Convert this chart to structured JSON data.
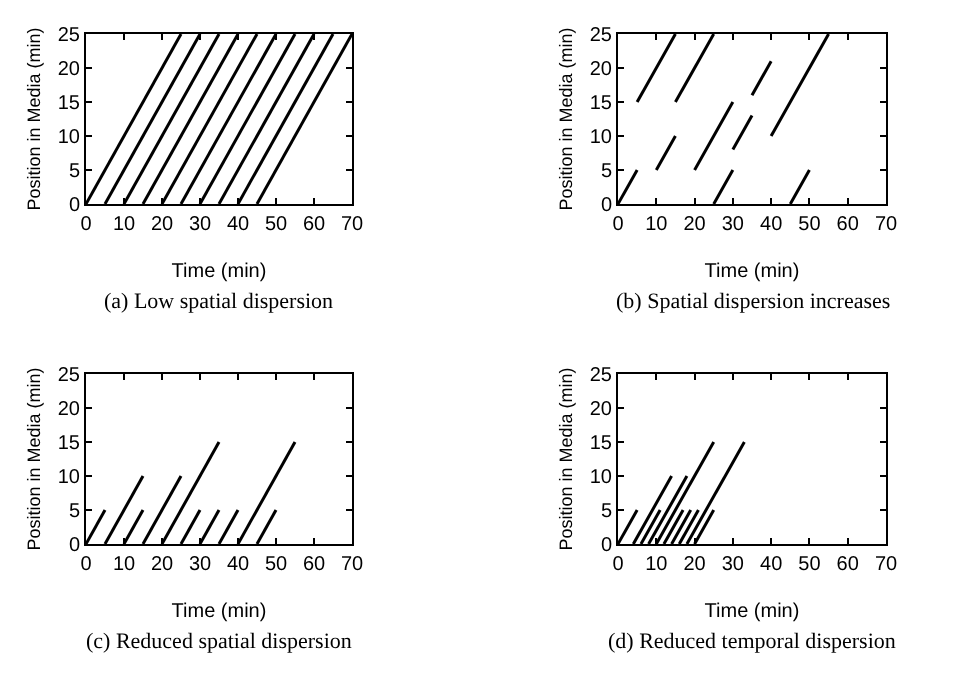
{
  "chart_data": [
    {
      "type": "line",
      "xlabel": "Time (min)",
      "ylabel": "Position in Media (min)",
      "annotations": [
        "(a) Low spatial dispersion"
      ],
      "xlim": [
        0,
        70
      ],
      "ylim": [
        0,
        25
      ],
      "xticks": [
        0,
        10,
        20,
        30,
        40,
        50,
        60,
        70
      ],
      "yticks": [
        0,
        5,
        10,
        15,
        20,
        25
      ],
      "grid": false,
      "series": [
        {
          "color": "#000000",
          "x": [
            0,
            25
          ],
          "values": [
            0,
            25
          ]
        },
        {
          "color": "#000000",
          "x": [
            5,
            30
          ],
          "values": [
            0,
            25
          ]
        },
        {
          "color": "#000000",
          "x": [
            10,
            35
          ],
          "values": [
            0,
            25
          ]
        },
        {
          "color": "#000000",
          "x": [
            15,
            40
          ],
          "values": [
            0,
            25
          ]
        },
        {
          "color": "#000000",
          "x": [
            20,
            45
          ],
          "values": [
            0,
            25
          ]
        },
        {
          "color": "#000000",
          "x": [
            25,
            50
          ],
          "values": [
            0,
            25
          ]
        },
        {
          "color": "#000000",
          "x": [
            30,
            55
          ],
          "values": [
            0,
            25
          ]
        },
        {
          "color": "#000000",
          "x": [
            35,
            60
          ],
          "values": [
            0,
            25
          ]
        },
        {
          "color": "#000000",
          "x": [
            40,
            65
          ],
          "values": [
            0,
            25
          ]
        },
        {
          "color": "#000000",
          "x": [
            45,
            70
          ],
          "values": [
            0,
            25
          ]
        }
      ]
    },
    {
      "type": "line",
      "xlabel": "Time (min)",
      "ylabel": "Position in Media (min)",
      "annotations": [
        "(b) Spatial dispersion increases"
      ],
      "xlim": [
        0,
        70
      ],
      "ylim": [
        0,
        25
      ],
      "xticks": [
        0,
        10,
        20,
        30,
        40,
        50,
        60,
        70
      ],
      "yticks": [
        0,
        5,
        10,
        15,
        20,
        25
      ],
      "grid": false,
      "series": [
        {
          "color": "#000000",
          "x": [
            0,
            5
          ],
          "values": [
            0,
            5
          ]
        },
        {
          "color": "#000000",
          "x": [
            5,
            15
          ],
          "values": [
            15,
            25
          ]
        },
        {
          "color": "#000000",
          "x": [
            10,
            15
          ],
          "values": [
            5,
            10
          ]
        },
        {
          "color": "#000000",
          "x": [
            15,
            25
          ],
          "values": [
            15,
            25
          ]
        },
        {
          "color": "#000000",
          "x": [
            20,
            30
          ],
          "values": [
            5,
            15
          ]
        },
        {
          "color": "#000000",
          "x": [
            25,
            30
          ],
          "values": [
            0,
            5
          ]
        },
        {
          "color": "#000000",
          "x": [
            30,
            35
          ],
          "values": [
            8,
            13
          ]
        },
        {
          "color": "#000000",
          "x": [
            35,
            40
          ],
          "values": [
            16,
            21
          ]
        },
        {
          "color": "#000000",
          "x": [
            40,
            55
          ],
          "values": [
            10,
            25
          ]
        },
        {
          "color": "#000000",
          "x": [
            45,
            50
          ],
          "values": [
            0,
            5
          ]
        }
      ]
    },
    {
      "type": "line",
      "xlabel": "Time (min)",
      "ylabel": "Position in Media (min)",
      "annotations": [
        "(c) Reduced spatial dispersion"
      ],
      "xlim": [
        0,
        70
      ],
      "ylim": [
        0,
        25
      ],
      "xticks": [
        0,
        10,
        20,
        30,
        40,
        50,
        60,
        70
      ],
      "yticks": [
        0,
        5,
        10,
        15,
        20,
        25
      ],
      "grid": false,
      "series": [
        {
          "color": "#000000",
          "x": [
            0,
            5
          ],
          "values": [
            0,
            5
          ]
        },
        {
          "color": "#000000",
          "x": [
            5,
            15
          ],
          "values": [
            0,
            10
          ]
        },
        {
          "color": "#000000",
          "x": [
            10,
            15
          ],
          "values": [
            0,
            5
          ]
        },
        {
          "color": "#000000",
          "x": [
            15,
            25
          ],
          "values": [
            0,
            10
          ]
        },
        {
          "color": "#000000",
          "x": [
            20,
            35
          ],
          "values": [
            0,
            15
          ]
        },
        {
          "color": "#000000",
          "x": [
            25,
            30
          ],
          "values": [
            0,
            5
          ]
        },
        {
          "color": "#000000",
          "x": [
            30,
            35
          ],
          "values": [
            0,
            5
          ]
        },
        {
          "color": "#000000",
          "x": [
            35,
            40
          ],
          "values": [
            0,
            5
          ]
        },
        {
          "color": "#000000",
          "x": [
            40,
            55
          ],
          "values": [
            0,
            15
          ]
        },
        {
          "color": "#000000",
          "x": [
            45,
            50
          ],
          "values": [
            0,
            5
          ]
        }
      ]
    },
    {
      "type": "line",
      "xlabel": "Time (min)",
      "ylabel": "Position in Media (min)",
      "annotations": [
        "(d) Reduced temporal dispersion"
      ],
      "xlim": [
        0,
        70
      ],
      "ylim": [
        0,
        25
      ],
      "xticks": [
        0,
        10,
        20,
        30,
        40,
        50,
        60,
        70
      ],
      "yticks": [
        0,
        5,
        10,
        15,
        20,
        25
      ],
      "grid": false,
      "series": [
        {
          "color": "#000000",
          "x": [
            0,
            5
          ],
          "values": [
            0,
            5
          ]
        },
        {
          "color": "#000000",
          "x": [
            4,
            14
          ],
          "values": [
            0,
            10
          ]
        },
        {
          "color": "#000000",
          "x": [
            6,
            11
          ],
          "values": [
            0,
            5
          ]
        },
        {
          "color": "#000000",
          "x": [
            8,
            18
          ],
          "values": [
            0,
            10
          ]
        },
        {
          "color": "#000000",
          "x": [
            10,
            25
          ],
          "values": [
            0,
            15
          ]
        },
        {
          "color": "#000000",
          "x": [
            12,
            17
          ],
          "values": [
            0,
            5
          ]
        },
        {
          "color": "#000000",
          "x": [
            14,
            19
          ],
          "values": [
            0,
            5
          ]
        },
        {
          "color": "#000000",
          "x": [
            16,
            21
          ],
          "values": [
            0,
            5
          ]
        },
        {
          "color": "#000000",
          "x": [
            18,
            33
          ],
          "values": [
            0,
            15
          ]
        },
        {
          "color": "#000000",
          "x": [
            20,
            25
          ],
          "values": [
            0,
            5
          ]
        }
      ]
    }
  ]
}
